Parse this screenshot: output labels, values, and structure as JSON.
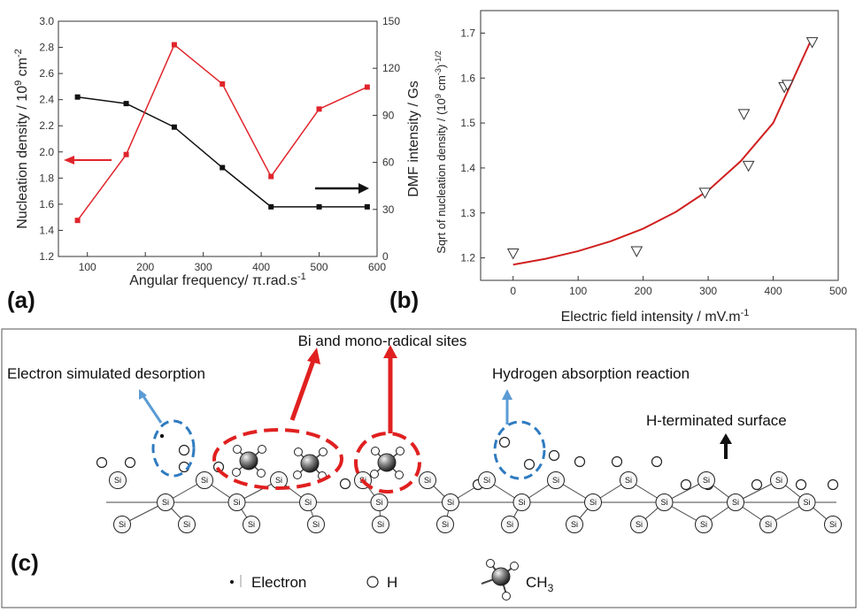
{
  "chart_data": [
    {
      "type": "line",
      "panel_label": "(a)",
      "xlabel": "Angular frequency/ π.rad.s",
      "xlabel_sup": "-1",
      "ylabel": "Nucleation density / 10",
      "ylabel_sup1": "9",
      "ylabel_mid": " cm",
      "ylabel_sup2": "-2",
      "y2label": "DMF intensity / Gs",
      "xlim": [
        50,
        600
      ],
      "ylim": [
        1.2,
        3.0
      ],
      "y2lim": [
        0,
        150
      ],
      "xticks": [
        "100",
        "200",
        "300",
        "400",
        "500",
        "600"
      ],
      "yticks": [
        "1.2",
        "1.4",
        "1.6",
        "1.8",
        "2.0",
        "2.2",
        "2.4",
        "2.6",
        "2.8",
        "3.0"
      ],
      "y2ticks": [
        "0",
        "30",
        "60",
        "90",
        "120",
        "150"
      ],
      "series": [
        {
          "axis": "left",
          "color": "#111111",
          "marker": "square",
          "x": [
            83,
            167,
            250,
            333,
            417,
            500,
            583
          ],
          "y": [
            2.42,
            2.37,
            2.19,
            1.88,
            1.58,
            1.58,
            1.58
          ]
        },
        {
          "axis": "right",
          "color": "#e0242b",
          "marker": "square",
          "x": [
            83,
            167,
            250,
            333,
            417,
            500,
            583
          ],
          "y": [
            23,
            65,
            135,
            110,
            51,
            94,
            108
          ]
        }
      ],
      "arrows": [
        {
          "direction": "left",
          "color": "#e0242b"
        },
        {
          "direction": "right",
          "color": "#111111"
        }
      ]
    },
    {
      "type": "scatter",
      "panel_label": "(b)",
      "xlabel": "Electric field intensity / mV.m",
      "xlabel_sup": "-1",
      "ylabel": "Sqrt of nucleation density / (10",
      "ylabel_sup1": "9",
      "ylabel_mid": " cm",
      "ylabel_sup2": "-3",
      "ylabel_post": ")",
      "ylabel_sup3": "-1/2",
      "xlim": [
        -50,
        500
      ],
      "ylim": [
        1.15,
        1.75
      ],
      "xticks": [
        "0",
        "100",
        "200",
        "300",
        "400",
        "500"
      ],
      "yticks": [
        "1.2",
        "1.3",
        "1.4",
        "1.5",
        "1.6",
        "1.7"
      ],
      "points": {
        "marker": "down-triangle",
        "color": "#333333",
        "x": [
          0,
          190,
          295,
          355,
          362,
          417,
          422,
          460
        ],
        "y": [
          1.21,
          1.215,
          1.345,
          1.52,
          1.405,
          1.58,
          1.585,
          1.68
        ]
      },
      "fit": {
        "color": "#d02020",
        "x": [
          0,
          50,
          100,
          150,
          200,
          250,
          300,
          350,
          400,
          460
        ],
        "y": [
          1.185,
          1.198,
          1.215,
          1.237,
          1.265,
          1.302,
          1.35,
          1.415,
          1.5,
          1.69
        ]
      }
    }
  ],
  "schematic": {
    "panel_label": "(c)",
    "labels": {
      "sites": "Bi and mono-radical sites",
      "esd": "Electron simulated desorption",
      "har": "Hydrogen absorption reaction",
      "hterm": "H-terminated surface"
    },
    "atom_label": "Si",
    "legend": {
      "electron": "Electron",
      "hydrogen": "H",
      "methyl": "CH",
      "methyl_sub": "3"
    },
    "colors": {
      "red": "#e02020",
      "blue": "#2f7bc0",
      "arrow_blue": "#5b9bd5"
    }
  }
}
